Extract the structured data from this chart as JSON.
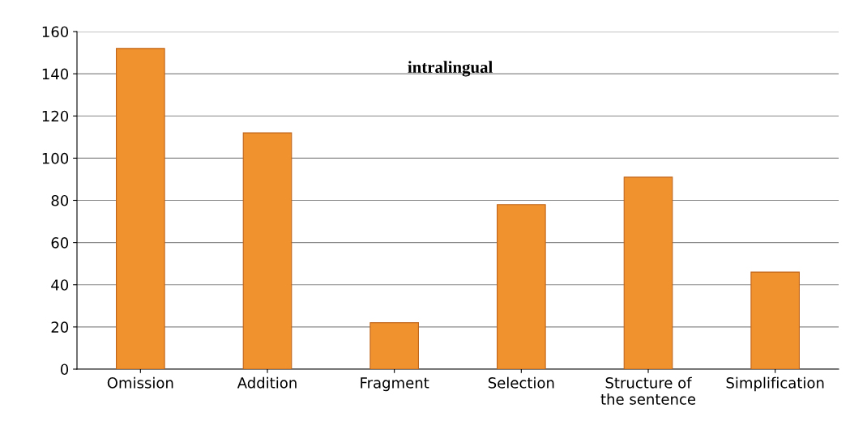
{
  "chart_data": {
    "type": "bar",
    "title": "intralingual",
    "categories": [
      "Omission",
      "Addition",
      "Fragment",
      "Selection",
      "Structure of\nthe sentence",
      "Simplification"
    ],
    "values": [
      152,
      112,
      22,
      78,
      91,
      46
    ],
    "color": "#f0922e",
    "ylim": [
      0,
      160
    ],
    "yticks": [
      0,
      20,
      40,
      60,
      80,
      100,
      120,
      140,
      160
    ],
    "grid": "y"
  }
}
